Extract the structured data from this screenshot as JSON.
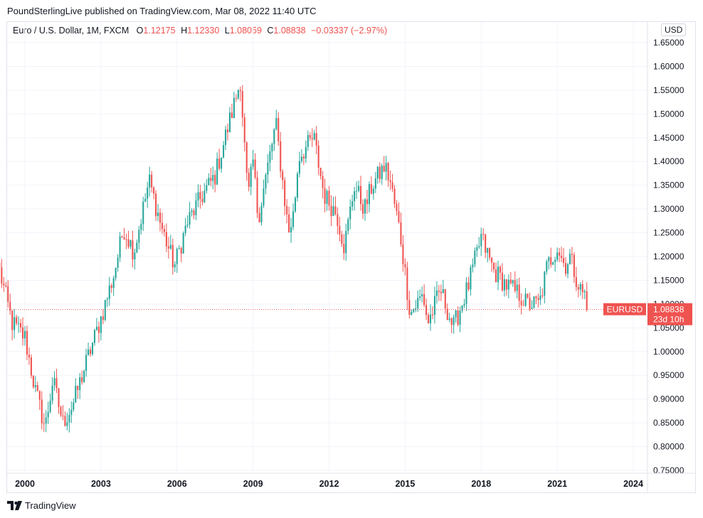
{
  "header": {
    "published_line": "PoundSterlingLive published on TradingView.com, Mar 08, 2022 11:40 UTC"
  },
  "legend": {
    "symbol": "Euro / U.S. Dollar, 1M, FXCM",
    "open_label": "O",
    "open": "1.12175",
    "high_label": "H",
    "high": "1.12330",
    "low_label": "L",
    "low": "1.08059",
    "close_label": "C",
    "close": "1.08838",
    "change": "−0.03337 (−2.97%)"
  },
  "currency": "USD",
  "footer": {
    "brand": "TradingView",
    "logo_text": "17"
  },
  "chart_data": {
    "type": "candlestick",
    "title": "Euro / U.S. Dollar, 1M, FXCM",
    "symbol": "EURUSD",
    "last_price": "1.08838",
    "last_price_value": 1.08838,
    "countdown": "23d 10h",
    "ylim": [
      0.75,
      1.65
    ],
    "xlim": [
      1998.9,
      2025.2
    ],
    "y_ticks": [
      "1.65000",
      "1.60000",
      "1.55000",
      "1.50000",
      "1.45000",
      "1.40000",
      "1.35000",
      "1.30000",
      "1.25000",
      "1.20000",
      "1.15000",
      "1.10000",
      "1.05000",
      "1.00000",
      "0.95000",
      "0.90000",
      "0.85000",
      "0.80000",
      "0.75000"
    ],
    "x_ticks": [
      {
        "label": "2000",
        "t": 2000.0
      },
      {
        "label": "2003",
        "t": 2003.0
      },
      {
        "label": "2006",
        "t": 2006.0
      },
      {
        "label": "2009",
        "t": 2009.0
      },
      {
        "label": "2012",
        "t": 2012.0
      },
      {
        "label": "2015",
        "t": 2015.0
      },
      {
        "label": "2018",
        "t": 2018.0
      },
      {
        "label": "2021",
        "t": 2021.0
      },
      {
        "label": "2024",
        "t": 2024.0
      }
    ],
    "colors": {
      "up": "#26a69a",
      "down": "#ef5350",
      "grid": "#f0f3fa",
      "price_line": "#ef5350"
    },
    "anchors": [
      [
        1999.0,
        1.17
      ],
      [
        1999.5,
        1.06
      ],
      [
        2000.0,
        1.03
      ],
      [
        2000.4,
        0.92
      ],
      [
        2000.8,
        0.84
      ],
      [
        2001.1,
        0.94
      ],
      [
        2001.5,
        0.85
      ],
      [
        2001.9,
        0.89
      ],
      [
        2002.5,
        0.99
      ],
      [
        2003.0,
        1.07
      ],
      [
        2003.5,
        1.16
      ],
      [
        2003.9,
        1.26
      ],
      [
        2004.3,
        1.21
      ],
      [
        2004.9,
        1.36
      ],
      [
        2005.4,
        1.26
      ],
      [
        2005.9,
        1.18
      ],
      [
        2006.4,
        1.27
      ],
      [
        2006.9,
        1.32
      ],
      [
        2007.5,
        1.37
      ],
      [
        2008.0,
        1.47
      ],
      [
        2008.5,
        1.57
      ],
      [
        2008.8,
        1.32
      ],
      [
        2009.0,
        1.4
      ],
      [
        2009.2,
        1.28
      ],
      [
        2009.9,
        1.48
      ],
      [
        2010.4,
        1.25
      ],
      [
        2010.6,
        1.29
      ],
      [
        2010.8,
        1.41
      ],
      [
        2011.4,
        1.45
      ],
      [
        2011.8,
        1.33
      ],
      [
        2012.3,
        1.29
      ],
      [
        2012.6,
        1.22
      ],
      [
        2013.0,
        1.35
      ],
      [
        2013.4,
        1.3
      ],
      [
        2013.7,
        1.35
      ],
      [
        2014.2,
        1.39
      ],
      [
        2014.4,
        1.36
      ],
      [
        2014.8,
        1.25
      ],
      [
        2015.2,
        1.08
      ],
      [
        2015.7,
        1.12
      ],
      [
        2015.9,
        1.06
      ],
      [
        2016.4,
        1.13
      ],
      [
        2016.9,
        1.05
      ],
      [
        2017.5,
        1.14
      ],
      [
        2018.0,
        1.24
      ],
      [
        2018.5,
        1.17
      ],
      [
        2019.0,
        1.14
      ],
      [
        2019.5,
        1.12
      ],
      [
        2019.8,
        1.1
      ],
      [
        2020.3,
        1.1
      ],
      [
        2020.6,
        1.18
      ],
      [
        2021.0,
        1.22
      ],
      [
        2021.3,
        1.18
      ],
      [
        2021.5,
        1.2
      ],
      [
        2021.9,
        1.13
      ],
      [
        2022.1,
        1.12
      ],
      [
        2022.2,
        1.08838
      ]
    ]
  }
}
